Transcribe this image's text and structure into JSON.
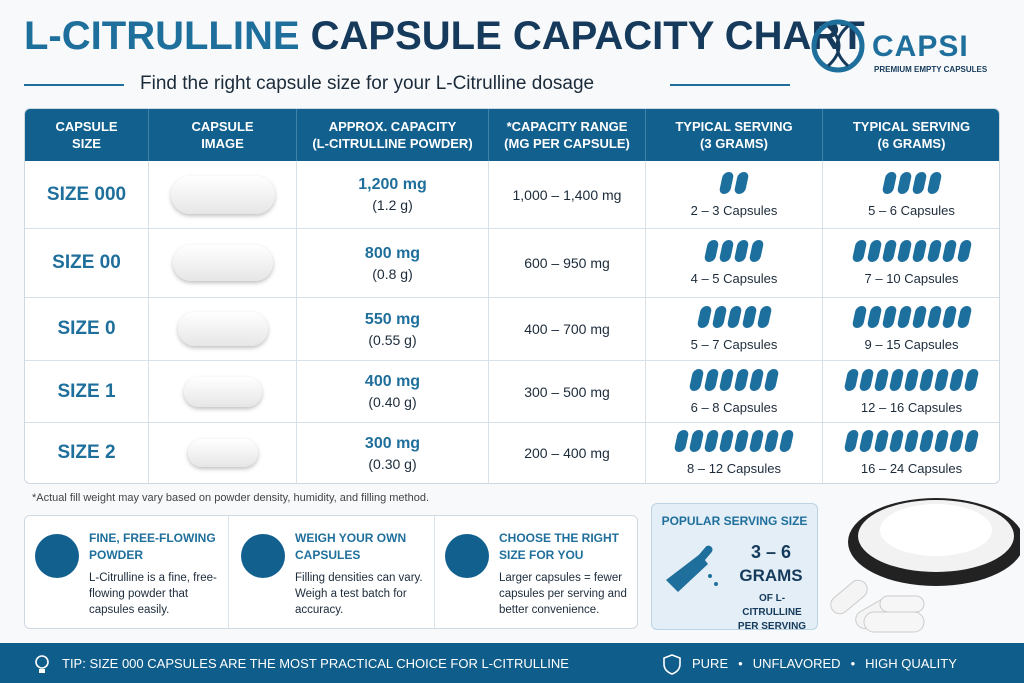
{
  "header": {
    "title_part1": "L-CITRULLINE",
    "title_part2": "CAPSULE CAPACITY CHART",
    "subtitle": "Find the right capsule size for your L-Citrulline dosage"
  },
  "brand": {
    "name": "CAPSI",
    "tagline": "PREMIUM EMPTY CAPSULES"
  },
  "table": {
    "headers": [
      [
        "CAPSULE",
        "SIZE"
      ],
      [
        "CAPSULE",
        "IMAGE"
      ],
      [
        "APPROX. CAPACITY",
        "(L-CITRULLINE POWDER)"
      ],
      [
        "*CAPACITY RANGE",
        "(MG PER CAPSULE)"
      ],
      [
        "TYPICAL SERVING",
        "(3 GRAMS)"
      ],
      [
        "TYPICAL SERVING",
        "(6 GRAMS)"
      ]
    ],
    "rows": [
      {
        "size": "SIZE 000",
        "capacity": "1,200 mg",
        "capacity_g": "(1.2 g)",
        "range": "1,000 – 1,400 mg",
        "serving_3g": "2 – 3 Capsules",
        "serving_6g": "5 – 6 Capsules"
      },
      {
        "size": "SIZE 00",
        "capacity": "800 mg",
        "capacity_g": "(0.8 g)",
        "range": "600 – 950 mg",
        "serving_3g": "4 – 5 Capsules",
        "serving_6g": "7 – 10 Capsules"
      },
      {
        "size": "SIZE 0",
        "capacity": "550 mg",
        "capacity_g": "(0.55 g)",
        "range": "400 – 700 mg",
        "serving_3g": "5 – 7 Capsules",
        "serving_6g": "9 – 15 Capsules"
      },
      {
        "size": "SIZE 1",
        "capacity": "400 mg",
        "capacity_g": "(0.40 g)",
        "range": "300 – 500 mg",
        "serving_3g": "6 – 8 Capsules",
        "serving_6g": "12 – 16 Capsules"
      },
      {
        "size": "SIZE 2",
        "capacity": "300 mg",
        "capacity_g": "(0.30 g)",
        "range": "200 – 400 mg",
        "serving_3g": "8 – 12 Capsules",
        "serving_6g": "16 – 24 Capsules"
      }
    ]
  },
  "footnote": "*Actual fill weight may vary based on powder density, humidity, and filling method.",
  "features": [
    {
      "title": "FINE, FREE-FLOWING POWDER",
      "text": "L-Citrulline is a fine, free-flowing powder that capsules easily."
    },
    {
      "title": "WEIGH YOUR OWN CAPSULES",
      "text": "Filling densities can vary. Weigh a test batch for accuracy."
    },
    {
      "title": "CHOOSE THE RIGHT SIZE FOR YOU",
      "text": "Larger capsules = fewer capsules per serving and better convenience."
    }
  ],
  "popular": {
    "title": "POPULAR SERVING SIZE",
    "amount": "3 – 6",
    "unit": "GRAMS",
    "note": "OF L-CITRULLINE PER SERVING"
  },
  "footer": {
    "tip": "TIP: SIZE 000 CAPSULES ARE THE MOST PRACTICAL CHOICE FOR L-CITRULLINE",
    "badges": [
      "PURE",
      "UNFLAVORED",
      "HIGH QUALITY"
    ]
  }
}
